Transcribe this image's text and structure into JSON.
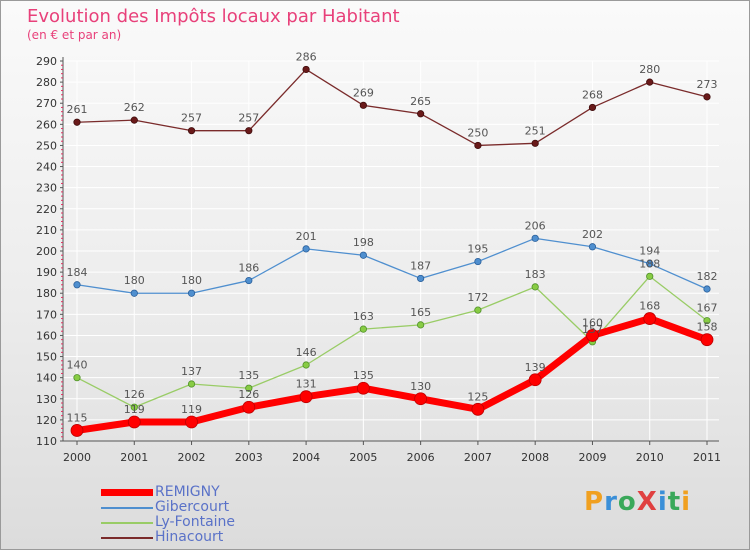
{
  "header": {
    "title": "Evolution des Impôts locaux par Habitant",
    "subtitle": "(en € et par an)"
  },
  "logo": {
    "text": "ProXiti",
    "letters": [
      {
        "ch": "P",
        "color": "#f0a020"
      },
      {
        "ch": "r",
        "color": "#3a8fd8"
      },
      {
        "ch": "o",
        "color": "#3aa85a"
      },
      {
        "ch": "X",
        "color": "#e04040"
      },
      {
        "ch": "i",
        "color": "#3a8fd8"
      },
      {
        "ch": "t",
        "color": "#3aa85a"
      },
      {
        "ch": "i",
        "color": "#f0a020"
      }
    ]
  },
  "chart_data": {
    "type": "line",
    "title": "Evolution des Impôts locaux par Habitant",
    "subtitle": "(en € et par an)",
    "xlabel": "",
    "ylabel": "",
    "categories": [
      "2000",
      "2001",
      "2002",
      "2003",
      "2004",
      "2005",
      "2006",
      "2007",
      "2008",
      "2009",
      "2010",
      "2011"
    ],
    "ylim": [
      110,
      290
    ],
    "yticks": [
      110,
      120,
      130,
      140,
      150,
      160,
      170,
      180,
      190,
      200,
      210,
      220,
      230,
      240,
      250,
      260,
      270,
      280,
      290
    ],
    "grid": true,
    "legend_position": "bottom-left",
    "series": [
      {
        "name": "REMIGNY",
        "color": "#ff0000",
        "values": [
          115,
          119,
          119,
          126,
          131,
          135,
          130,
          125,
          139,
          160,
          168,
          158
        ]
      },
      {
        "name": "Gibercourt",
        "color": "#4f8fcf",
        "values": [
          184,
          180,
          180,
          186,
          201,
          198,
          187,
          195,
          206,
          202,
          194,
          182
        ]
      },
      {
        "name": "Ly-Fontaine",
        "color": "#88cc44",
        "values": [
          140,
          126,
          137,
          135,
          146,
          163,
          165,
          172,
          183,
          157,
          188,
          167
        ]
      },
      {
        "name": "Hinacourt",
        "color": "#7a2b2b",
        "values": [
          261,
          262,
          257,
          257,
          286,
          269,
          265,
          250,
          251,
          268,
          280,
          273
        ]
      }
    ]
  }
}
